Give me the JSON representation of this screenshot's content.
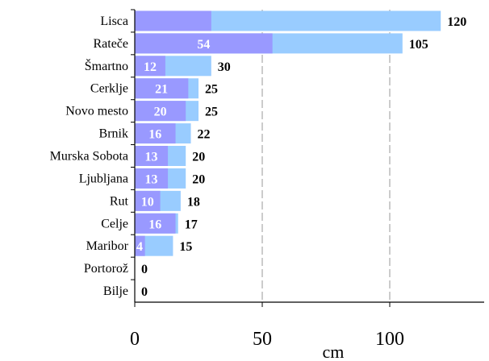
{
  "chart_data": {
    "type": "bar",
    "orientation": "horizontal",
    "categories": [
      "Lisca",
      "Rateče",
      "Šmartno",
      "Cerklje",
      "Novo mesto",
      "Brnik",
      "Murska Sobota",
      "Ljubljana",
      "Rut",
      "Celje",
      "Maribor",
      "Portorož",
      "Bilje"
    ],
    "series": [
      {
        "values": [
          120,
          105,
          30,
          25,
          25,
          22,
          20,
          20,
          18,
          17,
          15,
          0,
          0
        ]
      },
      {
        "values": [
          30,
          54,
          12,
          21,
          20,
          16,
          13,
          13,
          10,
          16,
          4,
          0,
          0
        ]
      }
    ],
    "outer_labels": [
      "120",
      "105",
      "30",
      "25",
      "25",
      "22",
      "20",
      "20",
      "18",
      "17",
      "15",
      "0",
      "0"
    ],
    "inner_labels": [
      "",
      "54",
      "12",
      "21",
      "20",
      "16",
      "13",
      "13",
      "10",
      "16",
      "4",
      "",
      ""
    ],
    "xticks": [
      "0",
      "50",
      "100"
    ],
    "xtick_values": [
      0,
      50,
      100
    ],
    "xlabel": "cm",
    "xlim": [
      0,
      130
    ],
    "grid": "vertical dashed",
    "colors": {
      "total": "#99ccff",
      "part": "#9999ff",
      "grid": "#999999",
      "axis": "#000000"
    }
  }
}
